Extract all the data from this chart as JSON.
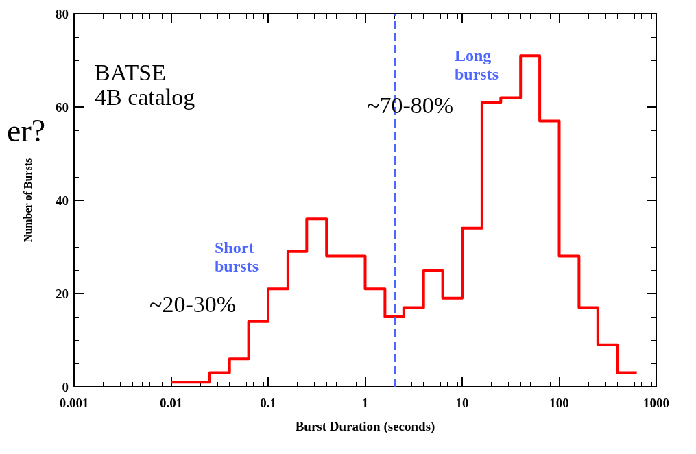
{
  "chart_data": {
    "type": "histogram",
    "xlabel": "Burst Duration (seconds)",
    "ylabel": "Number of Bursts",
    "bins": [
      0.01,
      0.016,
      0.025,
      0.04,
      0.063,
      0.1,
      0.16,
      0.25,
      0.4,
      0.63,
      1,
      1.6,
      2.5,
      4,
      6.3,
      10,
      16,
      25,
      40,
      63,
      100,
      160,
      250,
      400,
      630
    ],
    "values": [
      1,
      1,
      3,
      6,
      14,
      21,
      29,
      36,
      28,
      28,
      21,
      15,
      17,
      25,
      19,
      34,
      61,
      62,
      71,
      57,
      28,
      17,
      9,
      3
    ],
    "color": "#ff0000",
    "log": "x",
    "grid": false,
    "xlim": [
      0.001,
      1000
    ],
    "xticks": [
      0.001,
      0.01,
      0.1,
      1,
      10,
      100,
      1000
    ],
    "ylim": [
      0,
      80
    ],
    "yticks": [
      0,
      20,
      40,
      60,
      80
    ],
    "ref_lines": [
      {
        "axis": "x",
        "value": 2,
        "color": "#4d66ff",
        "line_style": "dashed"
      }
    ],
    "annotations": [
      "er?",
      "BATSE\n4B catalog",
      "Short\nbursts",
      "~20-30%",
      "Long\nbursts",
      "~70-80%"
    ]
  }
}
